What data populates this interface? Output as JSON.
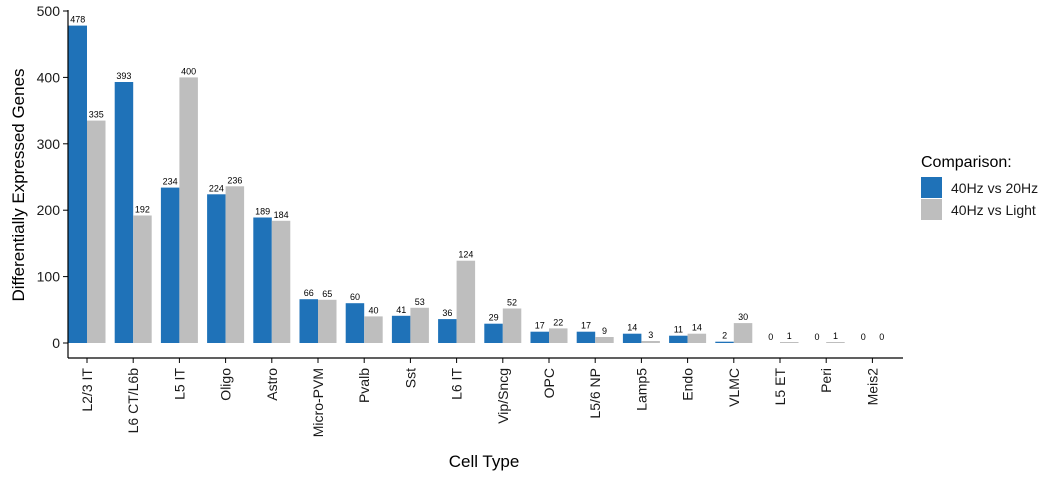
{
  "chart_data": {
    "type": "bar",
    "xlabel": "Cell Type",
    "ylabel": "Differentially Expressed Genes",
    "ylim": [
      0,
      500
    ],
    "yticks": [
      0,
      100,
      200,
      300,
      400,
      500
    ],
    "grid": false,
    "legend_position": "right",
    "categories": [
      "L2/3 IT",
      "L6 CT/L6b",
      "L5 IT",
      "Oligo",
      "Astro",
      "Micro-PVM",
      "Pvalb",
      "Sst",
      "L6 IT",
      "Vip/Sncg",
      "OPC",
      "L5/6 NP",
      "Lamp5",
      "Endo",
      "VLMC",
      "L5 ET",
      "Peri",
      "Meis2"
    ],
    "series": [
      {
        "name": "40Hz vs 20Hz",
        "color": "#1f72b8",
        "values": [
          478,
          393,
          234,
          224,
          189,
          66,
          60,
          41,
          36,
          29,
          17,
          17,
          14,
          11,
          2,
          0,
          0,
          0
        ]
      },
      {
        "name": "40Hz vs Light",
        "color": "#bebebe",
        "values": [
          335,
          192,
          400,
          236,
          184,
          65,
          40,
          53,
          124,
          52,
          22,
          9,
          3,
          14,
          30,
          1,
          1,
          0
        ]
      }
    ]
  },
  "legend": {
    "title": "Comparison:"
  }
}
